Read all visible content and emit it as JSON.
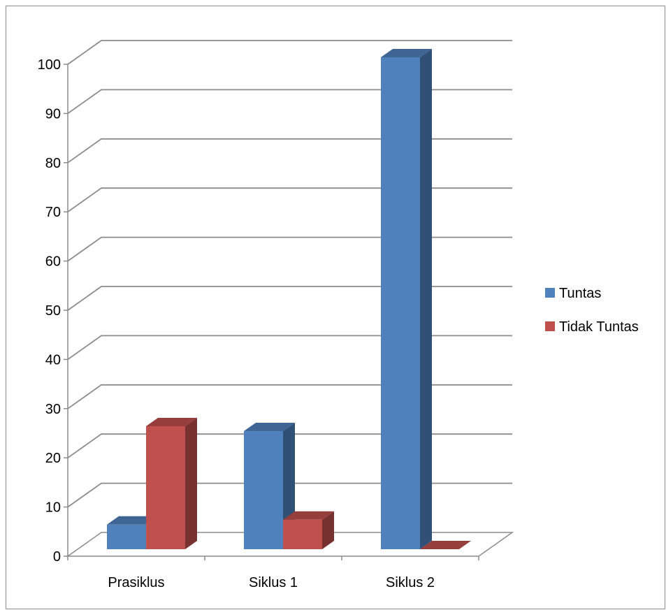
{
  "chart_data": {
    "type": "bar",
    "style": "3d-clustered-column",
    "categories": [
      "Prasiklus",
      "Siklus 1",
      "Siklus 2"
    ],
    "series": [
      {
        "name": "Tuntas",
        "values": [
          5,
          24,
          100
        ],
        "color": "#4F81BD"
      },
      {
        "name": "Tidak Tuntas",
        "values": [
          25,
          6,
          0
        ],
        "color": "#C0504D"
      }
    ],
    "y_ticks": [
      "0",
      "10",
      "20",
      "30",
      "40",
      "50",
      "60",
      "70",
      "80",
      "90",
      "100"
    ],
    "ylim": [
      0,
      100
    ],
    "grid": true,
    "legend_position": "right"
  }
}
